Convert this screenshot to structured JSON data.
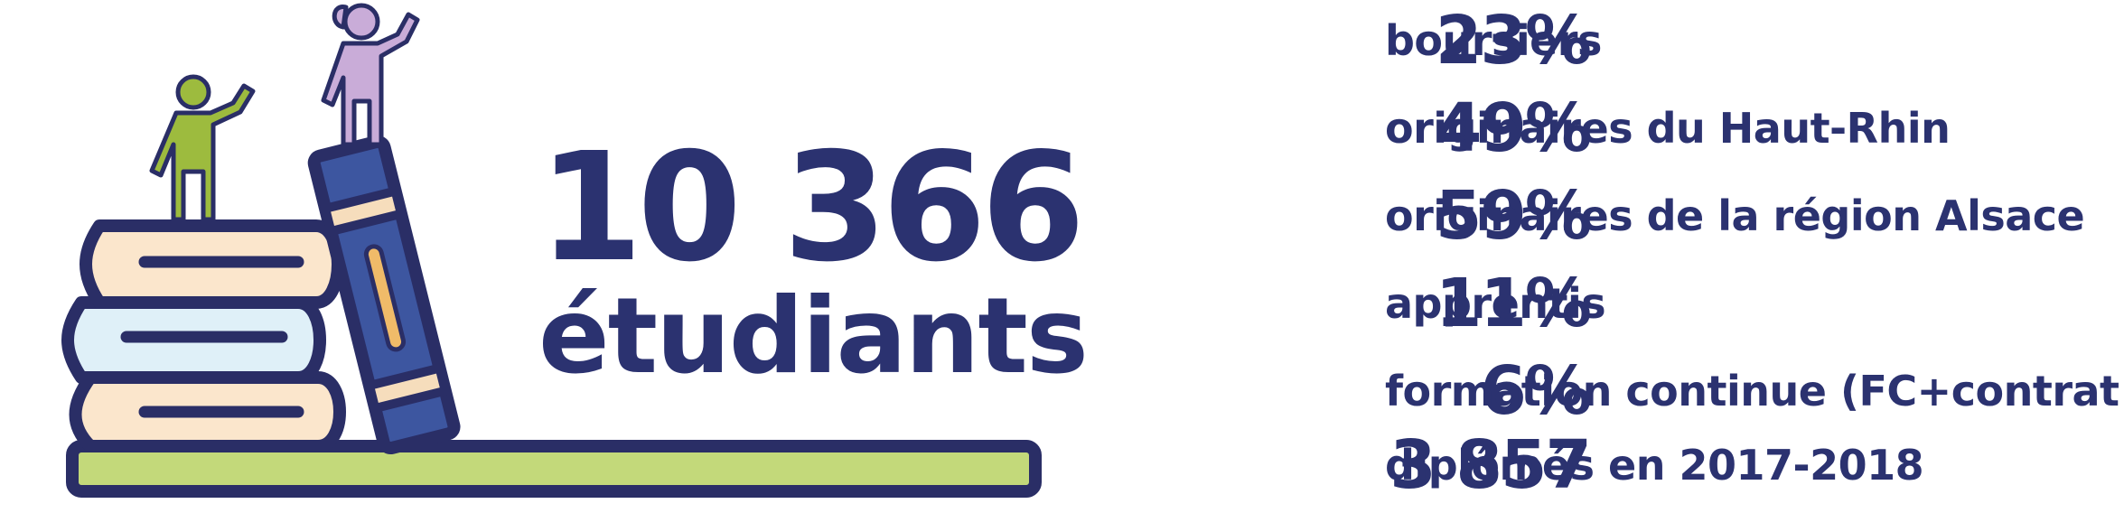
{
  "headline": {
    "number": "10 366",
    "label": "étudiants"
  },
  "stats": [
    {
      "value": "23%",
      "label": "boursiers"
    },
    {
      "value": "49%",
      "label": "originaires du Haut-Rhin"
    },
    {
      "value": "59%",
      "label": "originaires de la région Alsace"
    },
    {
      "value": "11%",
      "label": "apprentis"
    },
    {
      "value": "6%",
      "label": "formation continue (FC+contrat pro)"
    },
    {
      "value": "3 857",
      "label": "diplômés en 2017-2018"
    }
  ],
  "colors": {
    "navy": "#2b3270",
    "outline": "#2a2e66",
    "book_cream": "#fbe6cc",
    "book_blue_light": "#dff0f8",
    "book_blue_dark": "#3d56a0",
    "book_band": "#f6ddbc",
    "book_spine_stripe": "#f0bb69",
    "shelf_green": "#c3d97a",
    "figure_green": "#9dbb3e",
    "figure_purple": "#c9acd8"
  },
  "icons": [
    "book-stack-icon",
    "leaning-book-icon",
    "shelf-icon",
    "waving-boy-icon",
    "waving-girl-icon"
  ]
}
